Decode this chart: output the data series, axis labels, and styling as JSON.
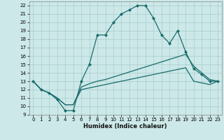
{
  "xlabel": "Humidex (Indice chaleur)",
  "background_color": "#cce8e8",
  "line_color": "#1a6b6b",
  "grid_color": "#aacccc",
  "xlim": [
    -0.5,
    23.5
  ],
  "ylim": [
    9,
    22.5
  ],
  "yticks": [
    9,
    10,
    11,
    12,
    13,
    14,
    15,
    16,
    17,
    18,
    19,
    20,
    21,
    22
  ],
  "xticks": [
    0,
    1,
    2,
    3,
    4,
    5,
    6,
    7,
    8,
    9,
    10,
    11,
    12,
    13,
    14,
    15,
    16,
    17,
    18,
    19,
    20,
    21,
    22,
    23
  ],
  "line1_x": [
    0,
    1,
    2,
    3,
    4,
    5,
    6,
    7,
    8,
    9,
    10,
    11,
    12,
    13,
    14,
    15,
    16,
    17,
    18,
    19,
    20,
    21,
    22,
    23
  ],
  "line1_y": [
    13,
    12,
    11.6,
    10.8,
    9.5,
    9.5,
    13,
    15,
    18.5,
    18.5,
    20,
    21,
    21.5,
    22,
    22,
    20.5,
    18.5,
    17.5,
    19,
    16.5,
    14.5,
    13.8,
    13,
    13
  ],
  "line2_x": [
    0,
    1,
    2,
    3,
    4,
    5,
    6,
    7,
    8,
    9,
    10,
    11,
    12,
    13,
    14,
    15,
    16,
    17,
    18,
    19,
    20,
    21,
    22,
    23
  ],
  "line2_y": [
    13,
    12,
    11.6,
    11.0,
    10.2,
    10.2,
    12.3,
    12.7,
    13.0,
    13.2,
    13.5,
    13.8,
    14.1,
    14.4,
    14.7,
    15.0,
    15.3,
    15.6,
    15.9,
    16.2,
    14.8,
    14.0,
    13.2,
    13.0
  ],
  "line3_x": [
    0,
    1,
    2,
    3,
    4,
    5,
    6,
    7,
    8,
    9,
    10,
    11,
    12,
    13,
    14,
    15,
    16,
    17,
    18,
    19,
    20,
    21,
    22,
    23
  ],
  "line3_y": [
    13,
    12,
    11.6,
    11.0,
    10.2,
    10.2,
    12.0,
    12.2,
    12.4,
    12.6,
    12.8,
    13.0,
    13.2,
    13.4,
    13.6,
    13.8,
    14.0,
    14.2,
    14.4,
    14.6,
    13.0,
    12.8,
    12.6,
    13.0
  ]
}
